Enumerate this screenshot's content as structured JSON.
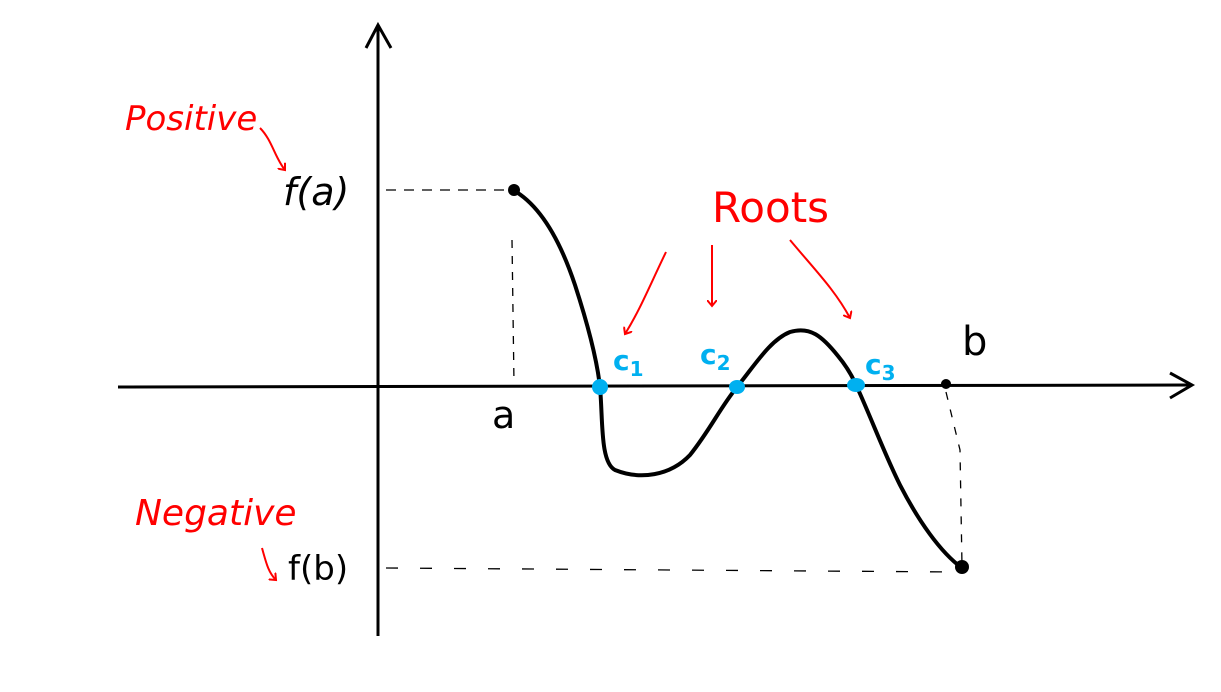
{
  "labels": {
    "positive": "Positive",
    "negative": "Negative",
    "roots": "Roots",
    "fa": "f(a)",
    "fb": "f(b)",
    "a": "a",
    "b": "b",
    "c1": "c",
    "c1_sub": "1",
    "c2": "c",
    "c2_sub": "2",
    "c3": "c",
    "c3_sub": "3"
  },
  "colors": {
    "curve": "#000000",
    "annotation": "#ff0000",
    "root_points": "#00b0f0"
  }
}
